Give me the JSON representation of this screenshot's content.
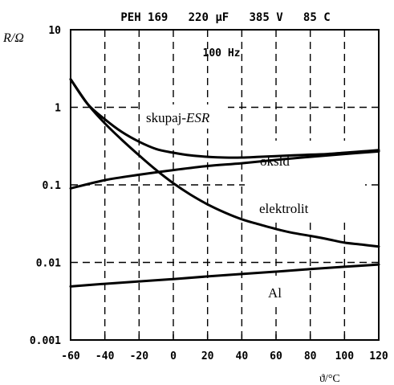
{
  "chart_data": {
    "type": "line",
    "title": "PEH 169   220 µF   385 V   85 C",
    "subtitle": "100 Hz",
    "xlabel": "ϑ/°C",
    "ylabel": "R/Ω",
    "xlim": [
      -60,
      120
    ],
    "ylim": [
      0.001,
      10
    ],
    "yscale": "log",
    "grid": true,
    "x_ticks": [
      "-60",
      "-40",
      "-20",
      "0",
      "20",
      "40",
      "60",
      "80",
      "100",
      "120"
    ],
    "y_ticks": [
      "10",
      "1",
      "0.1",
      "0.01",
      "0.001"
    ],
    "annotations": {
      "esr": "skupaj-",
      "esr_italic": "ESR",
      "oxide": "oksid",
      "electrolyte": "elektrolit",
      "al": "Al"
    },
    "series": [
      {
        "name": "skupaj-ESR",
        "x": [
          -60,
          -50,
          -40,
          -30,
          -20,
          -10,
          0,
          10,
          20,
          30,
          40,
          50,
          60,
          70,
          80,
          90,
          100,
          110,
          120
        ],
        "y": [
          2.3,
          1.1,
          0.7,
          0.48,
          0.36,
          0.29,
          0.26,
          0.24,
          0.23,
          0.225,
          0.225,
          0.23,
          0.235,
          0.24,
          0.245,
          0.25,
          0.26,
          0.27,
          0.28
        ]
      },
      {
        "name": "oksid",
        "x": [
          -60,
          -40,
          -20,
          0,
          20,
          40,
          60,
          80,
          100,
          120
        ],
        "y": [
          0.09,
          0.115,
          0.135,
          0.155,
          0.175,
          0.19,
          0.21,
          0.23,
          0.25,
          0.27
        ]
      },
      {
        "name": "elektrolit",
        "x": [
          -60,
          -50,
          -40,
          -30,
          -20,
          -10,
          0,
          10,
          20,
          30,
          40,
          50,
          60,
          70,
          80,
          90,
          100,
          110,
          120
        ],
        "y": [
          2.3,
          1.1,
          0.62,
          0.38,
          0.24,
          0.155,
          0.105,
          0.075,
          0.056,
          0.044,
          0.036,
          0.031,
          0.027,
          0.024,
          0.022,
          0.02,
          0.018,
          0.017,
          0.016
        ]
      },
      {
        "name": "Al",
        "x": [
          -60,
          -40,
          -20,
          0,
          20,
          40,
          60,
          80,
          100,
          120
        ],
        "y": [
          0.0049,
          0.0053,
          0.0057,
          0.0061,
          0.0066,
          0.0071,
          0.0076,
          0.0082,
          0.0088,
          0.0094
        ]
      }
    ]
  }
}
